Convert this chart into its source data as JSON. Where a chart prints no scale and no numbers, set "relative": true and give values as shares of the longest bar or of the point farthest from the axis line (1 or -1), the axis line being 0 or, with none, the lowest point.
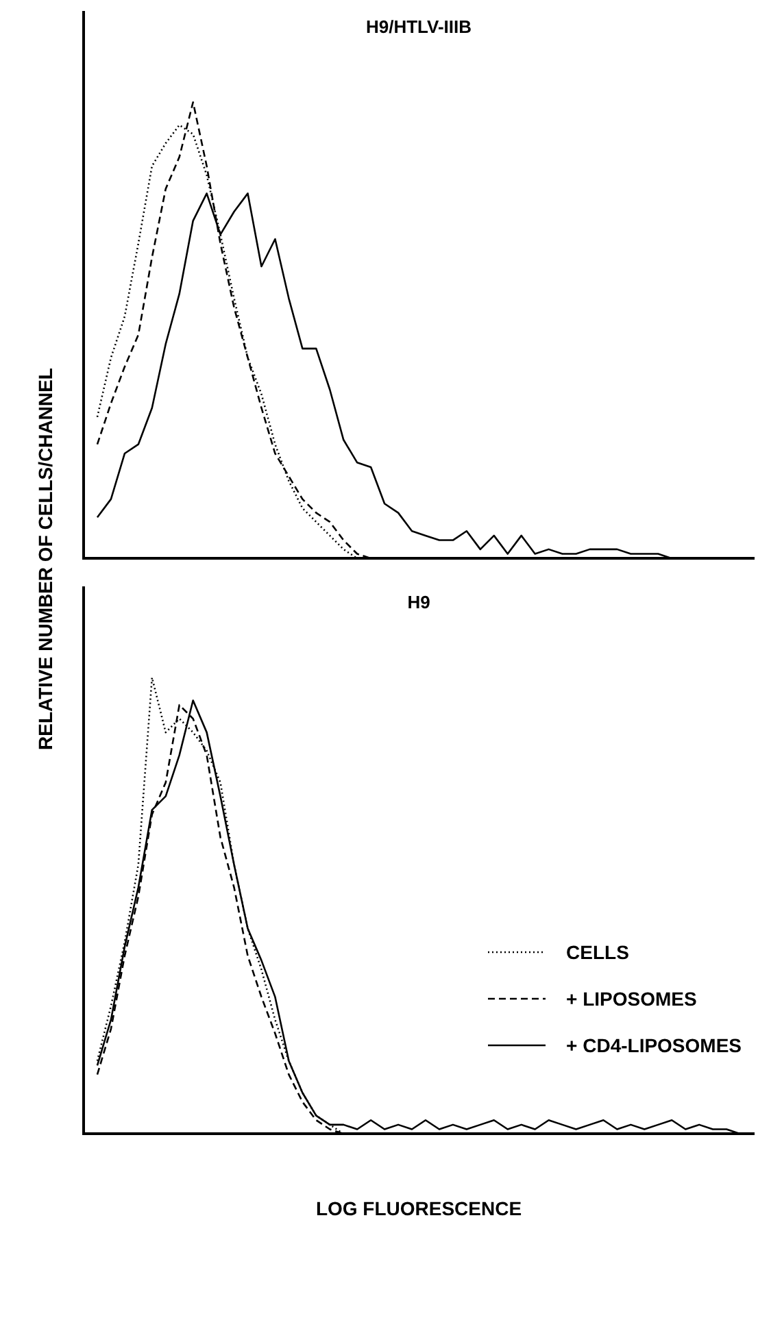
{
  "chart_data": [
    {
      "type": "line",
      "title": "H9/HTLV-IIIB",
      "ylabel": "RELATIVE NUMBER OF CELLS/CHANNEL",
      "relative": true,
      "legend": false,
      "marker": "none",
      "grid": false,
      "categories": [
        null,
        null,
        null,
        null,
        null,
        null,
        null,
        null,
        null,
        null,
        null,
        null,
        null,
        null,
        null,
        null,
        null,
        null,
        null,
        null,
        null,
        null,
        null,
        null,
        null,
        null,
        null,
        null,
        null,
        null,
        null,
        null,
        null,
        null,
        null,
        null,
        null,
        null,
        null,
        null,
        null,
        null,
        null,
        null,
        null,
        null,
        null,
        null,
        null,
        null
      ],
      "series": [
        {
          "color": "#000000",
          "line_style": "dotted",
          "values": [
            null,
            0.31,
            0.44,
            0.53,
            0.69,
            0.86,
            0.91,
            0.95,
            0.93,
            0.84,
            0.71,
            0.57,
            0.44,
            0.36,
            0.25,
            0.17,
            0.11,
            0.08,
            0.05,
            0.02,
            0,
            null,
            null,
            null,
            null,
            null,
            null,
            null,
            null,
            null,
            null,
            null,
            null,
            null,
            null,
            null,
            null,
            null,
            null,
            null,
            null,
            null,
            null,
            null,
            null,
            null,
            null,
            null,
            null,
            null
          ]
        },
        {
          "color": "#000000",
          "line_style": "dashed",
          "values": [
            null,
            0.25,
            0.34,
            0.42,
            0.49,
            0.66,
            0.81,
            0.88,
            1.0,
            0.86,
            0.69,
            0.55,
            0.44,
            0.33,
            0.23,
            0.18,
            0.13,
            0.1,
            0.08,
            0.04,
            0.01,
            0,
            null,
            null,
            null,
            null,
            null,
            null,
            null,
            null,
            null,
            null,
            null,
            null,
            null,
            null,
            null,
            null,
            null,
            null,
            null,
            null,
            null,
            null,
            null,
            null,
            null,
            null,
            null,
            null
          ]
        },
        {
          "color": "#000000",
          "line_style": "solid",
          "values": [
            null,
            0.09,
            0.13,
            0.23,
            0.25,
            0.33,
            0.47,
            0.58,
            0.74,
            0.8,
            0.71,
            0.76,
            0.8,
            0.64,
            0.7,
            0.57,
            0.46,
            0.46,
            0.37,
            0.26,
            0.21,
            0.2,
            0.12,
            0.1,
            0.06,
            0.05,
            0.04,
            0.04,
            0.06,
            0.02,
            0.05,
            0.01,
            0.05,
            0.01,
            0.02,
            0.01,
            0.01,
            0.02,
            0.02,
            0.02,
            0.01,
            0.01,
            0.01,
            0,
            null,
            null,
            null,
            null,
            null,
            null
          ]
        }
      ]
    },
    {
      "type": "line",
      "title": "H9",
      "xlabel": "LOG FLUORESCENCE",
      "relative": true,
      "legend": "right",
      "marker": "none",
      "grid": false,
      "categories": [
        null,
        null,
        null,
        null,
        null,
        null,
        null,
        null,
        null,
        null,
        null,
        null,
        null,
        null,
        null,
        null,
        null,
        null,
        null,
        null,
        null,
        null,
        null,
        null,
        null,
        null,
        null,
        null,
        null,
        null,
        null,
        null,
        null,
        null,
        null,
        null,
        null,
        null,
        null,
        null,
        null,
        null,
        null,
        null,
        null,
        null,
        null,
        null,
        null,
        null
      ],
      "series": [
        {
          "name": "CELLS",
          "color": "#000000",
          "line_style": "dotted",
          "values": [
            null,
            0.16,
            0.28,
            0.42,
            0.59,
            1.0,
            0.88,
            0.91,
            0.88,
            0.84,
            0.77,
            0.59,
            0.45,
            0.36,
            0.25,
            0.16,
            0.09,
            0.04,
            0.02,
            0,
            null,
            null,
            null,
            null,
            null,
            null,
            null,
            null,
            null,
            null,
            null,
            null,
            null,
            null,
            null,
            null,
            null,
            null,
            null,
            null,
            null,
            null,
            null,
            null,
            null,
            null,
            null,
            null,
            null,
            null
          ]
        },
        {
          "name": "+ LIPOSOMES",
          "color": "#000000",
          "line_style": "dashed",
          "values": [
            null,
            0.13,
            0.23,
            0.39,
            0.52,
            0.7,
            0.77,
            0.94,
            0.91,
            0.83,
            0.65,
            0.54,
            0.39,
            0.3,
            0.22,
            0.13,
            0.07,
            0.03,
            0.01,
            0,
            null,
            null,
            null,
            null,
            null,
            null,
            null,
            null,
            null,
            null,
            null,
            null,
            null,
            null,
            null,
            null,
            null,
            null,
            null,
            null,
            null,
            null,
            null,
            null,
            null,
            null,
            null,
            null,
            null,
            null
          ]
        },
        {
          "name": "+ CD4-LIPOSOMES",
          "color": "#000000",
          "line_style": "solid",
          "values": [
            null,
            0.15,
            0.25,
            0.41,
            0.54,
            0.71,
            0.74,
            0.83,
            0.95,
            0.88,
            0.74,
            0.59,
            0.45,
            0.38,
            0.3,
            0.16,
            0.09,
            0.04,
            0.02,
            0.02,
            0.01,
            0.03,
            0.01,
            0.02,
            0.01,
            0.03,
            0.01,
            0.02,
            0.01,
            0.02,
            0.03,
            0.01,
            0.02,
            0.01,
            0.03,
            0.02,
            0.01,
            0.02,
            0.03,
            0.01,
            0.02,
            0.01,
            0.02,
            0.03,
            0.01,
            0.02,
            0.01,
            0.01,
            0,
            null
          ]
        }
      ]
    }
  ]
}
